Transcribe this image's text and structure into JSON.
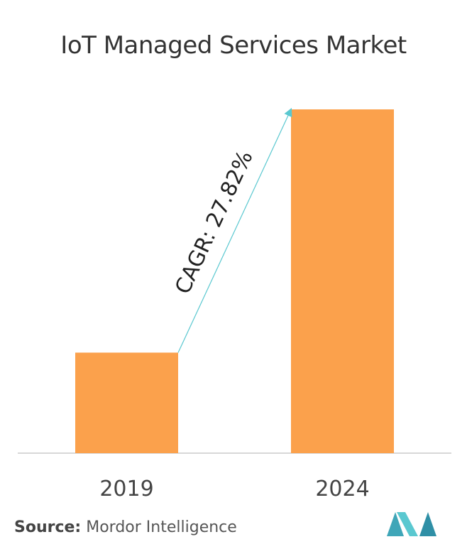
{
  "title": "IoT Managed Services Market",
  "source": {
    "label": "Source:",
    "name": "Mordor Intelligence"
  },
  "colors": {
    "bar": "#FBA14C",
    "arrow": "#5AC8D0",
    "axis": "#cccccc",
    "logo": "#5AB4C8"
  },
  "chart_data": {
    "type": "bar",
    "title": "IoT Managed Services Market",
    "categories": [
      "2019",
      "2024"
    ],
    "values": [
      1,
      3.42
    ],
    "annotation": "CAGR: 27.82%",
    "xlabel": "",
    "ylabel": "",
    "grid": false,
    "legend": "none"
  }
}
